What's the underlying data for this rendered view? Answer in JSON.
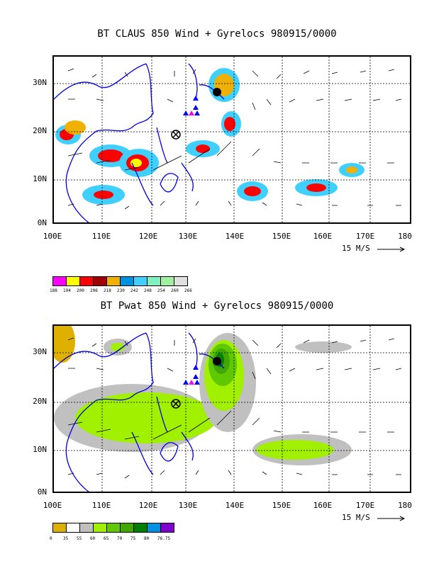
{
  "panel1": {
    "title": "BT CLAUS 850 Wind + Gyrelocs 980915/0000",
    "y_labels": [
      "30N",
      "20N",
      "10N",
      "0N"
    ],
    "x_labels": [
      "100E",
      "110E",
      "120E",
      "130E",
      "140E",
      "150E",
      "160E",
      "170E",
      "180"
    ],
    "scale_label": "15 M/S",
    "legend_colors": [
      "#ff00ff",
      "#ffff00",
      "#ff0000",
      "#a00000",
      "#f0b000",
      "#0090e0",
      "#40d0ff",
      "#80f0c0",
      "#a0f0a0",
      "#e0e0e0"
    ],
    "legend_labels": [
      "188",
      "194",
      "200",
      "206",
      "218",
      "230",
      "242",
      "248",
      "254",
      "260",
      "266"
    ]
  },
  "panel2": {
    "title": "BT Pwat 850 Wind + Gyrelocs 980915/0000",
    "y_labels": [
      "30N",
      "20N",
      "10N",
      "0N"
    ],
    "x_labels": [
      "100E",
      "110E",
      "120E",
      "130E",
      "140E",
      "150E",
      "160E",
      "170E",
      "180"
    ],
    "scale_label": "15 M/S",
    "legend_colors": [
      "#e0b000",
      "#ffffff",
      "#c0c0c0",
      "#a0f000",
      "#60c800",
      "#40a800",
      "#008000",
      "#0090e0",
      "#8000d0"
    ],
    "legend_labels": [
      "0",
      "35",
      "55",
      "60",
      "65",
      "70",
      "75",
      "80",
      "76.75"
    ]
  }
}
